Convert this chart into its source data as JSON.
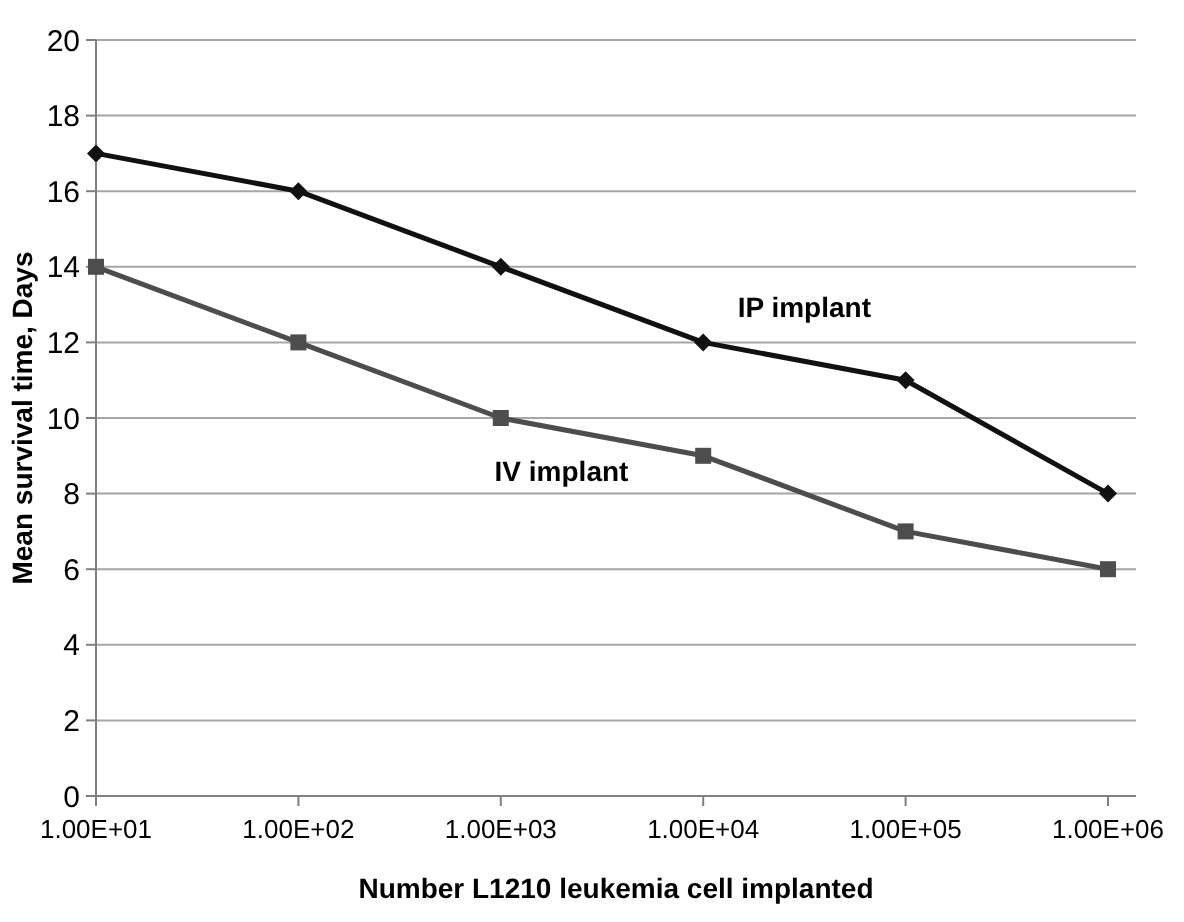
{
  "chart_data": {
    "type": "line",
    "xlabel": "Number L1210 leukemia cell implanted",
    "ylabel": "Mean survival time, Days",
    "categories": [
      "1.00E+01",
      "1.00E+02",
      "1.00E+03",
      "1.00E+04",
      "1.00E+05",
      "1.00E+06"
    ],
    "series": [
      {
        "name": "IP implant",
        "color": "#111111",
        "marker": "diamond",
        "values": [
          17,
          16,
          14,
          12,
          11,
          8
        ]
      },
      {
        "name": "IV implant",
        "color": "#4d4d4d",
        "marker": "square",
        "values": [
          14,
          12,
          10,
          9,
          7,
          6
        ]
      }
    ],
    "ylim": [
      0,
      20
    ],
    "yticks": [
      0,
      2,
      4,
      6,
      8,
      10,
      12,
      14,
      16,
      18,
      20
    ],
    "grid": "y",
    "line_style": "solid"
  }
}
